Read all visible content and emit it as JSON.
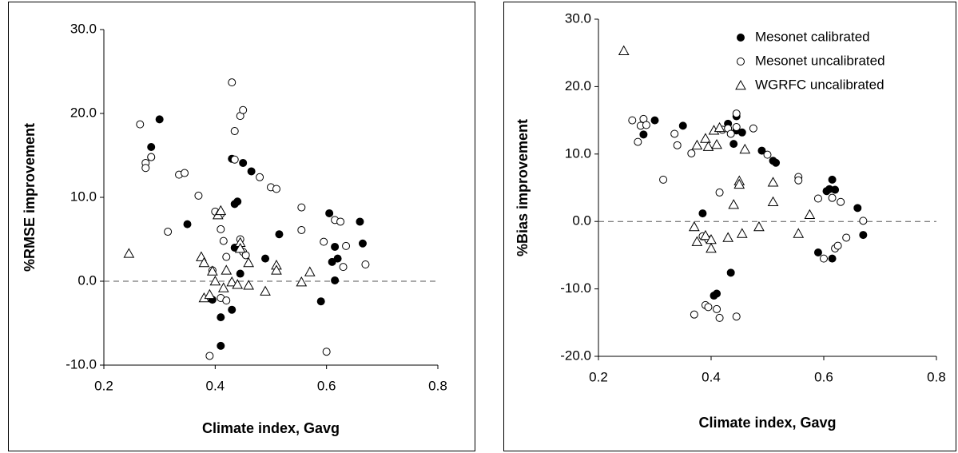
{
  "chart_data": [
    {
      "type": "scatter",
      "x_label": "Climate index, Gavg",
      "y_label": "%RMSE improvement",
      "xlim": [
        0.2,
        0.8
      ],
      "xticks": [
        0.2,
        0.4,
        0.6,
        0.8
      ],
      "ylim": [
        -10,
        30
      ],
      "yticks": [
        {
          "value": -10,
          "label": "-10.0"
        },
        {
          "value": 0,
          "label": "0.0"
        },
        {
          "value": 10,
          "label": "10.0"
        },
        {
          "value": 20,
          "label": "20.0"
        },
        {
          "value": 30,
          "label": "30.0"
        }
      ],
      "hline": 0,
      "series": [
        {
          "marker": "filled-circle",
          "color": "#000000",
          "x": [
            0.3,
            0.285,
            0.285,
            0.35,
            0.43,
            0.45,
            0.465,
            0.44,
            0.435,
            0.435,
            0.41,
            0.41,
            0.395,
            0.43,
            0.445,
            0.49,
            0.515,
            0.59,
            0.605,
            0.615,
            0.61,
            0.62,
            0.615,
            0.66,
            0.665
          ],
          "values": [
            19.3,
            16.0,
            14.8,
            6.8,
            14.6,
            14.1,
            13.1,
            9.5,
            9.2,
            4.0,
            -4.3,
            -7.7,
            -2.2,
            -3.4,
            0.9,
            2.7,
            5.6,
            -2.4,
            8.1,
            4.1,
            2.3,
            2.7,
            0.1,
            7.1,
            4.5
          ]
        },
        {
          "marker": "open-circle",
          "color": "#000000",
          "x": [
            0.265,
            0.275,
            0.275,
            0.285,
            0.315,
            0.335,
            0.345,
            0.37,
            0.4,
            0.41,
            0.41,
            0.415,
            0.42,
            0.395,
            0.41,
            0.42,
            0.39,
            0.43,
            0.435,
            0.435,
            0.445,
            0.45,
            0.445,
            0.45,
            0.455,
            0.48,
            0.5,
            0.51,
            0.555,
            0.555,
            0.595,
            0.6,
            0.615,
            0.625,
            0.635,
            0.63,
            0.67
          ],
          "values": [
            18.7,
            14.1,
            13.5,
            14.8,
            5.9,
            12.7,
            12.9,
            10.2,
            8.3,
            8.0,
            6.2,
            4.8,
            2.9,
            1.3,
            -2.0,
            -2.3,
            -8.9,
            23.7,
            17.9,
            14.5,
            19.7,
            20.4,
            5.0,
            3.5,
            3.1,
            12.4,
            11.2,
            11.0,
            8.8,
            6.1,
            4.7,
            -8.4,
            7.3,
            7.1,
            4.2,
            1.7,
            2.0
          ]
        },
        {
          "marker": "open-triangle",
          "color": "#000000",
          "x": [
            0.245,
            0.375,
            0.38,
            0.38,
            0.39,
            0.395,
            0.4,
            0.405,
            0.41,
            0.415,
            0.42,
            0.43,
            0.44,
            0.445,
            0.445,
            0.46,
            0.46,
            0.49,
            0.51,
            0.51,
            0.555,
            0.57
          ],
          "values": [
            3.3,
            2.9,
            2.2,
            -2.0,
            -1.6,
            1.2,
            0.0,
            7.9,
            8.4,
            -0.8,
            1.3,
            -0.1,
            -0.4,
            4.6,
            3.9,
            2.2,
            -0.5,
            -1.2,
            1.9,
            1.3,
            -0.1,
            1.1
          ]
        }
      ]
    },
    {
      "type": "scatter",
      "x_label": "Climate index, Gavg",
      "y_label": "%Bias improvement",
      "xlim": [
        0.2,
        0.8
      ],
      "xticks": [
        0.2,
        0.4,
        0.6,
        0.8
      ],
      "ylim": [
        -20,
        30
      ],
      "yticks": [
        {
          "value": -20,
          "label": "-20.0"
        },
        {
          "value": -10,
          "label": "-10.0"
        },
        {
          "value": 0,
          "label": "0.0"
        },
        {
          "value": 10,
          "label": "10.0"
        },
        {
          "value": 20,
          "label": "20.0"
        },
        {
          "value": 30,
          "label": "30.0"
        }
      ],
      "hline": 0,
      "legend": "upper right",
      "series": [
        {
          "name": "Mesonet calibrated",
          "marker": "filled-circle",
          "color": "#000000",
          "x": [
            0.28,
            0.3,
            0.35,
            0.385,
            0.405,
            0.41,
            0.43,
            0.435,
            0.44,
            0.445,
            0.445,
            0.455,
            0.49,
            0.51,
            0.515,
            0.59,
            0.605,
            0.61,
            0.615,
            0.615,
            0.62,
            0.66,
            0.67
          ],
          "values": [
            12.9,
            15.0,
            14.2,
            1.2,
            -11.0,
            -10.7,
            14.5,
            -7.6,
            11.5,
            15.6,
            13.5,
            13.2,
            10.5,
            9.0,
            8.7,
            -4.6,
            4.5,
            4.8,
            6.2,
            -5.5,
            4.7,
            2.0,
            -2.0
          ]
        },
        {
          "name": "Mesonet uncalibrated",
          "marker": "open-circle",
          "color": "#000000",
          "x": [
            0.26,
            0.27,
            0.275,
            0.28,
            0.285,
            0.315,
            0.335,
            0.34,
            0.365,
            0.37,
            0.385,
            0.39,
            0.395,
            0.395,
            0.41,
            0.415,
            0.415,
            0.42,
            0.43,
            0.435,
            0.445,
            0.445,
            0.445,
            0.45,
            0.475,
            0.5,
            0.555,
            0.555,
            0.59,
            0.6,
            0.615,
            0.62,
            0.625,
            0.63,
            0.64,
            0.67
          ],
          "values": [
            15.0,
            11.8,
            14.2,
            15.2,
            14.3,
            6.2,
            13.0,
            11.3,
            10.1,
            -13.8,
            -2.2,
            -12.4,
            -12.7,
            -2.7,
            -13.0,
            4.3,
            -14.3,
            13.6,
            13.8,
            13.0,
            16.0,
            14.0,
            -14.1,
            5.6,
            13.8,
            9.9,
            6.6,
            6.1,
            3.4,
            -5.5,
            3.5,
            -4.0,
            -3.6,
            2.9,
            -2.4,
            0.1
          ]
        },
        {
          "name": "WGRFC uncalibrated",
          "marker": "open-triangle",
          "color": "#000000",
          "x": [
            0.245,
            0.37,
            0.375,
            0.375,
            0.39,
            0.39,
            0.395,
            0.4,
            0.4,
            0.405,
            0.41,
            0.415,
            0.43,
            0.44,
            0.45,
            0.45,
            0.455,
            0.46,
            0.485,
            0.51,
            0.51,
            0.555,
            0.575
          ],
          "values": [
            25.3,
            -0.8,
            11.3,
            -3.0,
            12.3,
            -2.1,
            11.1,
            -2.7,
            -4.0,
            13.5,
            11.4,
            13.9,
            -2.4,
            2.5,
            6.0,
            5.5,
            -1.8,
            10.7,
            -0.8,
            5.8,
            2.9,
            -1.8,
            1.0
          ]
        }
      ]
    }
  ]
}
